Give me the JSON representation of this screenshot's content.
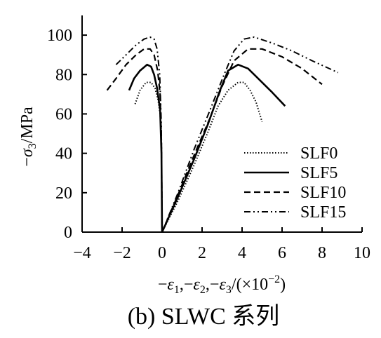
{
  "chart_data": {
    "type": "line",
    "caption": "(b) SLWC 系列",
    "xlabel": "−ε1,−ε2,−ε3/(×10−2)",
    "ylabel": "−σ3/MPa",
    "xlim": [
      -4,
      10
    ],
    "ylim": [
      0,
      110
    ],
    "x_ticks": [
      -4,
      -2,
      0,
      2,
      4,
      6,
      8,
      10
    ],
    "x_tick_labels": [
      "−4",
      "−2",
      "0",
      "2",
      "4",
      "6",
      "8",
      "10"
    ],
    "y_ticks": [
      0,
      20,
      40,
      60,
      80,
      100
    ],
    "y_tick_labels": [
      "0",
      "20",
      "40",
      "60",
      "80",
      "100"
    ],
    "grid": false,
    "legend": {
      "placement": "bottom-right"
    },
    "series": [
      {
        "name": "SLF0",
        "style": "dotted",
        "lateral": [
          [
            -1.35,
            65
          ],
          [
            -1.1,
            72
          ],
          [
            -0.8,
            76
          ],
          [
            -0.55,
            76
          ],
          [
            -0.35,
            73
          ],
          [
            -0.2,
            67
          ],
          [
            -0.1,
            60
          ],
          [
            -0.05,
            50
          ],
          [
            -0.02,
            30
          ],
          [
            0,
            0
          ]
        ],
        "axial": [
          [
            0,
            0
          ],
          [
            0.8,
            16
          ],
          [
            1.6,
            34
          ],
          [
            2.3,
            51
          ],
          [
            2.8,
            64
          ],
          [
            3.3,
            72
          ],
          [
            3.8,
            76
          ],
          [
            4.1,
            76
          ],
          [
            4.4,
            72
          ],
          [
            4.7,
            66
          ],
          [
            5.0,
            56
          ]
        ]
      },
      {
        "name": "SLF5",
        "style": "solid",
        "lateral": [
          [
            -1.65,
            72
          ],
          [
            -1.4,
            78
          ],
          [
            -1.1,
            82
          ],
          [
            -0.75,
            85
          ],
          [
            -0.55,
            84
          ],
          [
            -0.4,
            80
          ],
          [
            -0.25,
            73
          ],
          [
            -0.1,
            62
          ],
          [
            -0.03,
            40
          ],
          [
            0,
            0
          ]
        ],
        "axial": [
          [
            0,
            0
          ],
          [
            0.8,
            18
          ],
          [
            1.6,
            37
          ],
          [
            2.3,
            55
          ],
          [
            2.9,
            72
          ],
          [
            3.3,
            82
          ],
          [
            3.8,
            85
          ],
          [
            4.3,
            83
          ],
          [
            4.9,
            77
          ],
          [
            5.5,
            71
          ],
          [
            6.15,
            64
          ]
        ]
      },
      {
        "name": "SLF10",
        "style": "dashed",
        "lateral": [
          [
            -2.75,
            72
          ],
          [
            -2.3,
            78
          ],
          [
            -1.8,
            85
          ],
          [
            -1.3,
            90
          ],
          [
            -0.9,
            93
          ],
          [
            -0.6,
            93
          ],
          [
            -0.4,
            90
          ],
          [
            -0.22,
            82
          ],
          [
            -0.1,
            70
          ],
          [
            -0.03,
            45
          ],
          [
            0,
            0
          ]
        ],
        "axial": [
          [
            0,
            0
          ],
          [
            0.8,
            19
          ],
          [
            1.6,
            39
          ],
          [
            2.4,
            58
          ],
          [
            3.0,
            74
          ],
          [
            3.6,
            87
          ],
          [
            4.3,
            93
          ],
          [
            5.0,
            93
          ],
          [
            6.0,
            89
          ],
          [
            7.0,
            83
          ],
          [
            8.0,
            75
          ]
        ]
      },
      {
        "name": "SLF15",
        "style": "dash-dot-dot",
        "lateral": [
          [
            -2.3,
            85
          ],
          [
            -1.8,
            90
          ],
          [
            -1.3,
            95
          ],
          [
            -0.9,
            98
          ],
          [
            -0.6,
            99
          ],
          [
            -0.4,
            98
          ],
          [
            -0.25,
            93
          ],
          [
            -0.12,
            80
          ],
          [
            -0.04,
            55
          ],
          [
            0,
            0
          ]
        ],
        "axial": [
          [
            0,
            0
          ],
          [
            0.8,
            20
          ],
          [
            1.6,
            42
          ],
          [
            2.4,
            62
          ],
          [
            3.1,
            80
          ],
          [
            3.6,
            92
          ],
          [
            4.1,
            98
          ],
          [
            4.6,
            99
          ],
          [
            5.5,
            96
          ],
          [
            6.5,
            92
          ],
          [
            7.5,
            87
          ],
          [
            8.8,
            81
          ]
        ]
      }
    ]
  },
  "colors": {
    "line": "#000000",
    "background": "#ffffff"
  }
}
